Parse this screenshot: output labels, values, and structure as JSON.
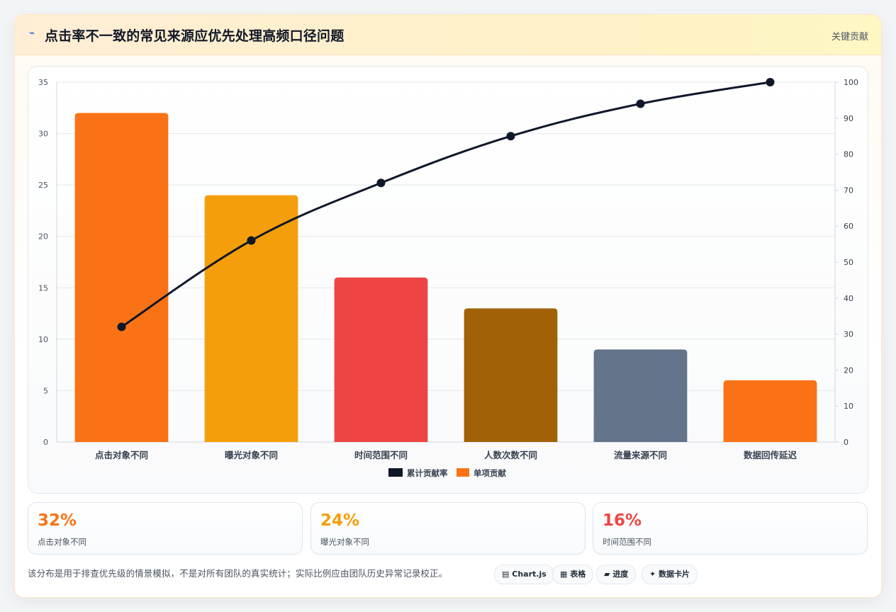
{
  "header": {
    "icon": "lightning-icon",
    "icon_glyph": "⌁",
    "title": "点击率不一致的常见来源应优先处理高频口径问题",
    "tag": "关键贡献"
  },
  "chart_data": {
    "type": "bar",
    "categories": [
      "点击对象不同",
      "曝光对象不同",
      "时间范围不同",
      "人数次数不同",
      "流量来源不同",
      "数据回传延迟"
    ],
    "series": [
      {
        "name": "单项贡献",
        "type": "bar",
        "axis": "left",
        "values": [
          32,
          24,
          16,
          13,
          9,
          6
        ],
        "colors": [
          "#f97316",
          "#f59e0b",
          "#ef4444",
          "#a16207",
          "#64748b",
          "#f97316"
        ]
      },
      {
        "name": "累计贡献率",
        "type": "line",
        "axis": "right",
        "values": [
          32,
          56,
          72,
          85,
          94,
          100
        ],
        "color": "#0f172a"
      }
    ],
    "y_left": {
      "min": 0,
      "max": 35,
      "ticks": [
        0,
        5,
        10,
        15,
        20,
        25,
        30,
        35
      ]
    },
    "y_right": {
      "min": 0,
      "max": 100,
      "ticks": [
        0,
        10,
        20,
        30,
        40,
        50,
        60,
        70,
        80,
        90,
        100
      ]
    },
    "legend": {
      "placement": "bottom",
      "order": [
        "累计贡献率",
        "单项贡献"
      ],
      "colors": [
        "#0f172a",
        "#f97316"
      ]
    },
    "grid": true
  },
  "stats": [
    {
      "value": "32%",
      "label": "点击对象不同",
      "color": "#f97316"
    },
    {
      "value": "24%",
      "label": "曝光对象不同",
      "color": "#f59e0b"
    },
    {
      "value": "16%",
      "label": "时间范围不同",
      "color": "#ef4444"
    }
  ],
  "footer": {
    "note": "该分布是用于排查优先级的情景模拟，不是对所有团队的真实统计；实际比例应由团队历史异常记录校正。",
    "chips": [
      {
        "icon": "chart-icon",
        "glyph": "▤",
        "label": "Chart.js"
      },
      {
        "icon": "table-icon",
        "glyph": "▦",
        "label": "表格"
      },
      {
        "icon": "progress-icon",
        "glyph": "▰",
        "label": "进度"
      },
      {
        "icon": "sparkle-icon",
        "glyph": "✦",
        "label": "数据卡片"
      }
    ]
  }
}
